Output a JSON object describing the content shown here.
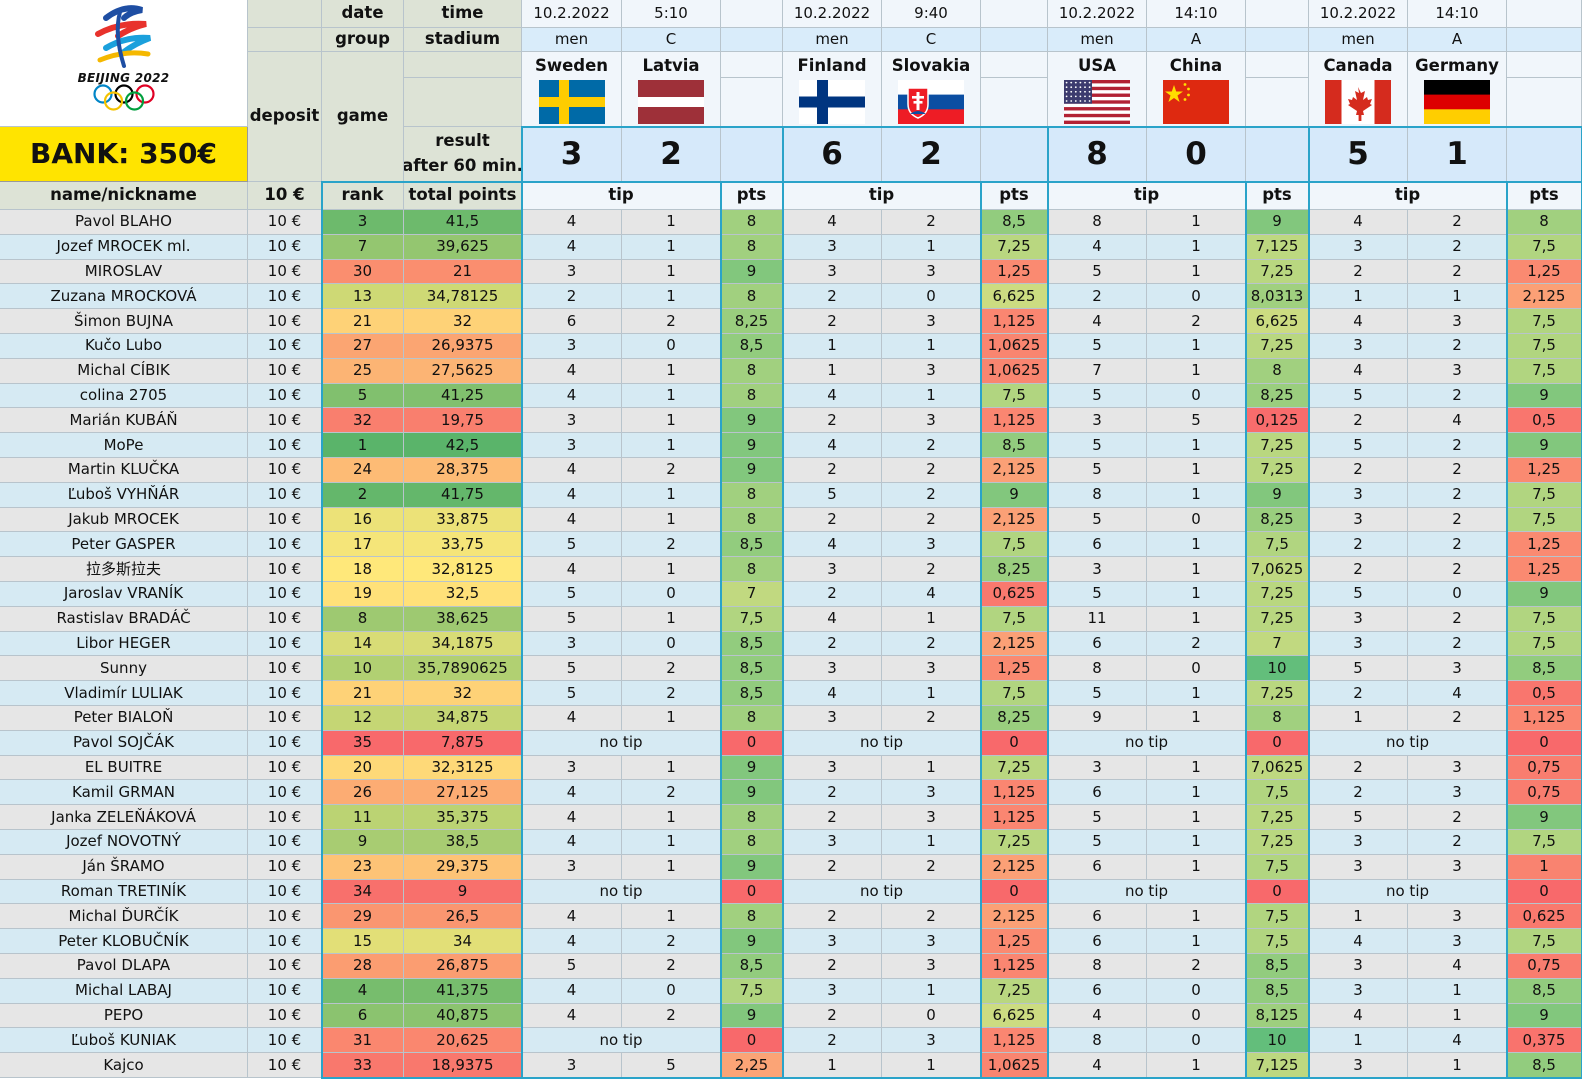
{
  "logo": {
    "text": "BEIJING 2022",
    "rings": [
      "#0085c7",
      "#000000",
      "#df0024",
      "#f4c300",
      "#009f3d"
    ]
  },
  "bank": "BANK: 350€",
  "hdr": {
    "date": "date",
    "time": "time",
    "group": "group",
    "stadium": "stadium",
    "deposit": "deposit",
    "game": "game",
    "result1": "result",
    "result2": "after 60 min.",
    "name": "name/nickname",
    "deposit_amount": "10 €",
    "rank": "rank",
    "total": "total points",
    "tip": "tip",
    "pts": "pts",
    "no_tip": "no tip"
  },
  "colors": {
    "rank_best": "#5ab46a",
    "rank_mid": "#ffe87a",
    "rank_worst": "#f8696b",
    "pts_best": "#63be7b",
    "pts_worst": "#f8696b",
    "border": "#2aa3c9",
    "bank": "#ffe400"
  },
  "games": [
    {
      "date": "10.2.2022",
      "time": "5:10",
      "group": "men",
      "stadium": "C",
      "home": {
        "name": "Sweden",
        "flag": "sweden-flag-icon",
        "score": "3"
      },
      "away": {
        "name": "Latvia",
        "flag": "latvia-flag-icon",
        "score": "2"
      }
    },
    {
      "date": "10.2.2022",
      "time": "9:40",
      "group": "men",
      "stadium": "C",
      "home": {
        "name": "Finland",
        "flag": "finland-flag-icon",
        "score": "6"
      },
      "away": {
        "name": "Slovakia",
        "flag": "slovakia-flag-icon",
        "score": "2"
      }
    },
    {
      "date": "10.2.2022",
      "time": "14:10",
      "group": "men",
      "stadium": "A",
      "home": {
        "name": "USA",
        "flag": "usa-flag-icon",
        "score": "8"
      },
      "away": {
        "name": "China",
        "flag": "china-flag-icon",
        "score": "0"
      }
    },
    {
      "date": "10.2.2022",
      "time": "14:10",
      "group": "men",
      "stadium": "A",
      "home": {
        "name": "Canada",
        "flag": "canada-flag-icon",
        "score": "5"
      },
      "away": {
        "name": "Germany",
        "flag": "germany-flag-icon",
        "score": "1"
      }
    }
  ],
  "rows": [
    {
      "name": "Pavol BLAHO",
      "deposit": "10 €",
      "rank": "3",
      "total": "41,5",
      "g": [
        [
          "4",
          "1",
          "8"
        ],
        [
          "4",
          "2",
          "8,5"
        ],
        [
          "8",
          "1",
          "9"
        ],
        [
          "4",
          "2",
          "8"
        ]
      ]
    },
    {
      "name": "Jozef MROCEK ml.",
      "deposit": "10 €",
      "rank": "7",
      "total": "39,625",
      "g": [
        [
          "4",
          "1",
          "8"
        ],
        [
          "3",
          "1",
          "7,25"
        ],
        [
          "4",
          "1",
          "7,125"
        ],
        [
          "3",
          "2",
          "7,5"
        ]
      ]
    },
    {
      "name": "MIROSLAV",
      "deposit": "10 €",
      "rank": "30",
      "total": "21",
      "g": [
        [
          "3",
          "1",
          "9"
        ],
        [
          "3",
          "3",
          "1,25"
        ],
        [
          "5",
          "1",
          "7,25"
        ],
        [
          "2",
          "2",
          "1,25"
        ]
      ]
    },
    {
      "name": "Zuzana MROCKOVÁ",
      "deposit": "10 €",
      "rank": "13",
      "total": "34,78125",
      "g": [
        [
          "2",
          "1",
          "8"
        ],
        [
          "2",
          "0",
          "6,625"
        ],
        [
          "2",
          "0",
          "8,0313"
        ],
        [
          "1",
          "1",
          "2,125"
        ]
      ]
    },
    {
      "name": "Šimon BUJNA",
      "deposit": "10 €",
      "rank": "21",
      "total": "32",
      "g": [
        [
          "6",
          "2",
          "8,25"
        ],
        [
          "2",
          "3",
          "1,125"
        ],
        [
          "4",
          "2",
          "6,625"
        ],
        [
          "4",
          "3",
          "7,5"
        ]
      ]
    },
    {
      "name": "Kučo Lubo",
      "deposit": "10 €",
      "rank": "27",
      "total": "26,9375",
      "g": [
        [
          "3",
          "0",
          "8,5"
        ],
        [
          "1",
          "1",
          "1,0625"
        ],
        [
          "5",
          "1",
          "7,25"
        ],
        [
          "3",
          "2",
          "7,5"
        ]
      ]
    },
    {
      "name": "Michal CÍBIK",
      "deposit": "10 €",
      "rank": "25",
      "total": "27,5625",
      "g": [
        [
          "4",
          "1",
          "8"
        ],
        [
          "1",
          "3",
          "1,0625"
        ],
        [
          "7",
          "1",
          "8"
        ],
        [
          "4",
          "3",
          "7,5"
        ]
      ]
    },
    {
      "name": "colina 2705",
      "deposit": "10 €",
      "rank": "5",
      "total": "41,25",
      "g": [
        [
          "4",
          "1",
          "8"
        ],
        [
          "4",
          "1",
          "7,5"
        ],
        [
          "5",
          "0",
          "8,25"
        ],
        [
          "5",
          "2",
          "9"
        ]
      ]
    },
    {
      "name": "Marián KUBÁŇ",
      "deposit": "10 €",
      "rank": "32",
      "total": "19,75",
      "g": [
        [
          "3",
          "1",
          "9"
        ],
        [
          "2",
          "3",
          "1,125"
        ],
        [
          "3",
          "5",
          "0,125"
        ],
        [
          "2",
          "4",
          "0,5"
        ]
      ]
    },
    {
      "name": "MoPe",
      "deposit": "10 €",
      "rank": "1",
      "total": "42,5",
      "g": [
        [
          "3",
          "1",
          "9"
        ],
        [
          "4",
          "2",
          "8,5"
        ],
        [
          "5",
          "1",
          "7,25"
        ],
        [
          "5",
          "2",
          "9"
        ]
      ]
    },
    {
      "name": "Martin KLUČKA",
      "deposit": "10 €",
      "rank": "24",
      "total": "28,375",
      "g": [
        [
          "4",
          "2",
          "9"
        ],
        [
          "2",
          "2",
          "2,125"
        ],
        [
          "5",
          "1",
          "7,25"
        ],
        [
          "2",
          "2",
          "1,25"
        ]
      ]
    },
    {
      "name": "Ľuboš VYHŇÁR",
      "deposit": "10 €",
      "rank": "2",
      "total": "41,75",
      "g": [
        [
          "4",
          "1",
          "8"
        ],
        [
          "5",
          "2",
          "9"
        ],
        [
          "8",
          "1",
          "9"
        ],
        [
          "3",
          "2",
          "7,5"
        ]
      ]
    },
    {
      "name": "Jakub MROCEK",
      "deposit": "10 €",
      "rank": "16",
      "total": "33,875",
      "g": [
        [
          "4",
          "1",
          "8"
        ],
        [
          "2",
          "2",
          "2,125"
        ],
        [
          "5",
          "0",
          "8,25"
        ],
        [
          "3",
          "2",
          "7,5"
        ]
      ]
    },
    {
      "name": "Peter GASPER",
      "deposit": "10 €",
      "rank": "17",
      "total": "33,75",
      "g": [
        [
          "5",
          "2",
          "8,5"
        ],
        [
          "4",
          "3",
          "7,5"
        ],
        [
          "6",
          "1",
          "7,5"
        ],
        [
          "2",
          "2",
          "1,25"
        ]
      ]
    },
    {
      "name": "拉多斯拉夫",
      "deposit": "10 €",
      "rank": "18",
      "total": "32,8125",
      "g": [
        [
          "4",
          "1",
          "8"
        ],
        [
          "3",
          "2",
          "8,25"
        ],
        [
          "3",
          "1",
          "7,0625"
        ],
        [
          "2",
          "2",
          "1,25"
        ]
      ]
    },
    {
      "name": "Jaroslav VRANÍK",
      "deposit": "10 €",
      "rank": "19",
      "total": "32,5",
      "g": [
        [
          "5",
          "0",
          "7"
        ],
        [
          "2",
          "4",
          "0,625"
        ],
        [
          "5",
          "1",
          "7,25"
        ],
        [
          "5",
          "0",
          "9"
        ]
      ]
    },
    {
      "name": "Rastislav BRADÁČ",
      "deposit": "10 €",
      "rank": "8",
      "total": "38,625",
      "g": [
        [
          "5",
          "1",
          "7,5"
        ],
        [
          "4",
          "1",
          "7,5"
        ],
        [
          "11",
          "1",
          "7,25"
        ],
        [
          "3",
          "2",
          "7,5"
        ]
      ]
    },
    {
      "name": "Libor HEGER",
      "deposit": "10 €",
      "rank": "14",
      "total": "34,1875",
      "g": [
        [
          "3",
          "0",
          "8,5"
        ],
        [
          "2",
          "2",
          "2,125"
        ],
        [
          "6",
          "2",
          "7"
        ],
        [
          "3",
          "2",
          "7,5"
        ]
      ]
    },
    {
      "name": "Sunny",
      "deposit": "10 €",
      "rank": "10",
      "total": "35,7890625",
      "g": [
        [
          "5",
          "2",
          "8,5"
        ],
        [
          "3",
          "3",
          "1,25"
        ],
        [
          "8",
          "0",
          "10"
        ],
        [
          "5",
          "3",
          "8,5"
        ]
      ]
    },
    {
      "name": "Vladimír LULIAK",
      "deposit": "10 €",
      "rank": "21",
      "total": "32",
      "g": [
        [
          "5",
          "2",
          "8,5"
        ],
        [
          "4",
          "1",
          "7,5"
        ],
        [
          "5",
          "1",
          "7,25"
        ],
        [
          "2",
          "4",
          "0,5"
        ]
      ]
    },
    {
      "name": "Peter BIALOŇ",
      "deposit": "10 €",
      "rank": "12",
      "total": "34,875",
      "g": [
        [
          "4",
          "1",
          "8"
        ],
        [
          "3",
          "2",
          "8,25"
        ],
        [
          "9",
          "1",
          "8"
        ],
        [
          "1",
          "2",
          "1,125"
        ]
      ]
    },
    {
      "name": "Pavol SOJČÁK",
      "deposit": "10 €",
      "rank": "35",
      "total": "7,875",
      "g": [
        [
          null,
          null,
          "0"
        ],
        [
          null,
          null,
          "0"
        ],
        [
          null,
          null,
          "0"
        ],
        [
          null,
          null,
          "0"
        ]
      ]
    },
    {
      "name": "EL BUITRE",
      "deposit": "10 €",
      "rank": "20",
      "total": "32,3125",
      "g": [
        [
          "3",
          "1",
          "9"
        ],
        [
          "3",
          "1",
          "7,25"
        ],
        [
          "3",
          "1",
          "7,0625"
        ],
        [
          "2",
          "3",
          "0,75"
        ]
      ]
    },
    {
      "name": "Kamil GRMAN",
      "deposit": "10 €",
      "rank": "26",
      "total": "27,125",
      "g": [
        [
          "4",
          "2",
          "9"
        ],
        [
          "2",
          "3",
          "1,125"
        ],
        [
          "6",
          "1",
          "7,5"
        ],
        [
          "2",
          "3",
          "0,75"
        ]
      ]
    },
    {
      "name": "Janka ZELEŇÁKOVÁ",
      "deposit": "10 €",
      "rank": "11",
      "total": "35,375",
      "g": [
        [
          "4",
          "1",
          "8"
        ],
        [
          "2",
          "3",
          "1,125"
        ],
        [
          "5",
          "1",
          "7,25"
        ],
        [
          "5",
          "2",
          "9"
        ]
      ]
    },
    {
      "name": "Jozef NOVOTNÝ",
      "deposit": "10 €",
      "rank": "9",
      "total": "38,5",
      "g": [
        [
          "4",
          "1",
          "8"
        ],
        [
          "3",
          "1",
          "7,25"
        ],
        [
          "5",
          "1",
          "7,25"
        ],
        [
          "3",
          "2",
          "7,5"
        ]
      ]
    },
    {
      "name": "Ján ŠRAMO",
      "deposit": "10 €",
      "rank": "23",
      "total": "29,375",
      "g": [
        [
          "3",
          "1",
          "9"
        ],
        [
          "2",
          "2",
          "2,125"
        ],
        [
          "6",
          "1",
          "7,5"
        ],
        [
          "3",
          "3",
          "1"
        ]
      ]
    },
    {
      "name": "Roman TRETINÍK",
      "deposit": "10 €",
      "rank": "34",
      "total": "9",
      "g": [
        [
          null,
          null,
          "0"
        ],
        [
          null,
          null,
          "0"
        ],
        [
          null,
          null,
          "0"
        ],
        [
          null,
          null,
          "0"
        ]
      ]
    },
    {
      "name": "Michal ĎURČÍK",
      "deposit": "10 €",
      "rank": "29",
      "total": "26,5",
      "g": [
        [
          "4",
          "1",
          "8"
        ],
        [
          "2",
          "2",
          "2,125"
        ],
        [
          "6",
          "1",
          "7,5"
        ],
        [
          "1",
          "3",
          "0,625"
        ]
      ]
    },
    {
      "name": "Peter KLOBUČNÍK",
      "deposit": "10 €",
      "rank": "15",
      "total": "34",
      "g": [
        [
          "4",
          "2",
          "9"
        ],
        [
          "3",
          "3",
          "1,25"
        ],
        [
          "6",
          "1",
          "7,5"
        ],
        [
          "4",
          "3",
          "7,5"
        ]
      ]
    },
    {
      "name": "Pavol DLAPA",
      "deposit": "10 €",
      "rank": "28",
      "total": "26,875",
      "g": [
        [
          "5",
          "2",
          "8,5"
        ],
        [
          "2",
          "3",
          "1,125"
        ],
        [
          "8",
          "2",
          "8,5"
        ],
        [
          "3",
          "4",
          "0,75"
        ]
      ]
    },
    {
      "name": "Michal LABAJ",
      "deposit": "10 €",
      "rank": "4",
      "total": "41,375",
      "g": [
        [
          "4",
          "0",
          "7,5"
        ],
        [
          "3",
          "1",
          "7,25"
        ],
        [
          "6",
          "0",
          "8,5"
        ],
        [
          "3",
          "1",
          "8,5"
        ]
      ]
    },
    {
      "name": "PEPO",
      "deposit": "10 €",
      "rank": "6",
      "total": "40,875",
      "g": [
        [
          "4",
          "2",
          "9"
        ],
        [
          "2",
          "0",
          "6,625"
        ],
        [
          "4",
          "0",
          "8,125"
        ],
        [
          "4",
          "1",
          "9"
        ]
      ]
    },
    {
      "name": "Ľuboš KUNIAK",
      "deposit": "10 €",
      "rank": "31",
      "total": "20,625",
      "g": [
        [
          null,
          null,
          "0"
        ],
        [
          "2",
          "3",
          "1,125"
        ],
        [
          "8",
          "0",
          "10"
        ],
        [
          "1",
          "4",
          "0,375"
        ]
      ]
    },
    {
      "name": "Kajco",
      "deposit": "10 €",
      "rank": "33",
      "total": "18,9375",
      "g": [
        [
          "3",
          "5",
          "2,25"
        ],
        [
          "1",
          "1",
          "1,0625"
        ],
        [
          "4",
          "1",
          "7,125"
        ],
        [
          "3",
          "1",
          "8,5"
        ]
      ]
    }
  ]
}
